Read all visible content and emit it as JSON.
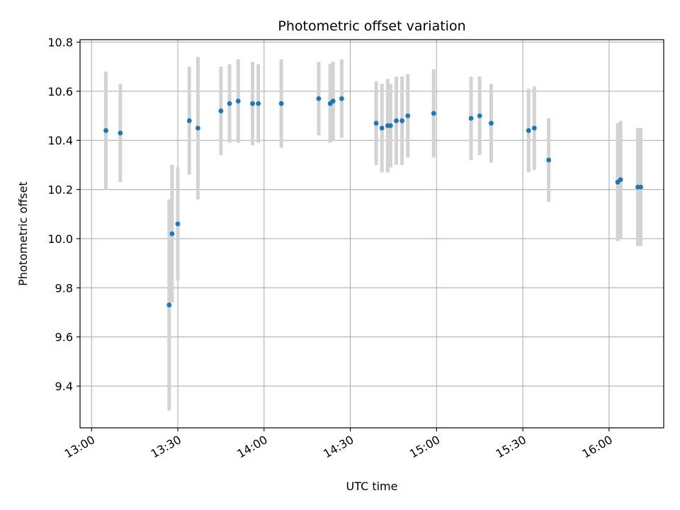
{
  "chart_data": {
    "type": "scatter",
    "title": "Photometric offset variation",
    "xlabel": "UTC time",
    "ylabel": "Photometric offset",
    "x_ticks": [
      "13:00",
      "13:30",
      "14:00",
      "14:30",
      "15:00",
      "15:30",
      "16:00"
    ],
    "y_ticks": [
      "9.4",
      "9.6",
      "9.8",
      "10.0",
      "10.2",
      "10.4",
      "10.6",
      "10.8"
    ],
    "xlim": [
      "12:56",
      "16:19"
    ],
    "ylim": [
      9.23,
      10.81
    ],
    "grid": true,
    "colors": {
      "point": "#1f77b4",
      "errorbar": "#d3d3d3",
      "grid": "#b0b0b0"
    },
    "points": [
      {
        "x": "13:05",
        "y": 10.44,
        "err": 0.24
      },
      {
        "x": "13:10",
        "y": 10.43,
        "err": 0.2
      },
      {
        "x": "13:27",
        "y": 9.73,
        "err": 0.43
      },
      {
        "x": "13:28",
        "y": 10.02,
        "err": 0.28
      },
      {
        "x": "13:30",
        "y": 10.06,
        "err": 0.23
      },
      {
        "x": "13:34",
        "y": 10.48,
        "err": 0.22
      },
      {
        "x": "13:37",
        "y": 10.45,
        "err": 0.29
      },
      {
        "x": "13:45",
        "y": 10.52,
        "err": 0.18
      },
      {
        "x": "13:48",
        "y": 10.55,
        "err": 0.16
      },
      {
        "x": "13:51",
        "y": 10.56,
        "err": 0.17
      },
      {
        "x": "13:56",
        "y": 10.55,
        "err": 0.17
      },
      {
        "x": "13:58",
        "y": 10.55,
        "err": 0.16
      },
      {
        "x": "14:06",
        "y": 10.55,
        "err": 0.18
      },
      {
        "x": "14:19",
        "y": 10.57,
        "err": 0.15
      },
      {
        "x": "14:23",
        "y": 10.55,
        "err": 0.16
      },
      {
        "x": "14:24",
        "y": 10.56,
        "err": 0.16
      },
      {
        "x": "14:27",
        "y": 10.57,
        "err": 0.16
      },
      {
        "x": "14:39",
        "y": 10.47,
        "err": 0.17
      },
      {
        "x": "14:41",
        "y": 10.45,
        "err": 0.18
      },
      {
        "x": "14:43",
        "y": 10.46,
        "err": 0.19
      },
      {
        "x": "14:44",
        "y": 10.46,
        "err": 0.17
      },
      {
        "x": "14:46",
        "y": 10.48,
        "err": 0.18
      },
      {
        "x": "14:48",
        "y": 10.48,
        "err": 0.18
      },
      {
        "x": "14:50",
        "y": 10.5,
        "err": 0.17
      },
      {
        "x": "14:59",
        "y": 10.51,
        "err": 0.18
      },
      {
        "x": "15:12",
        "y": 10.49,
        "err": 0.17
      },
      {
        "x": "15:15",
        "y": 10.5,
        "err": 0.16
      },
      {
        "x": "15:19",
        "y": 10.47,
        "err": 0.16
      },
      {
        "x": "15:32",
        "y": 10.44,
        "err": 0.17
      },
      {
        "x": "15:34",
        "y": 10.45,
        "err": 0.17
      },
      {
        "x": "15:39",
        "y": 10.32,
        "err": 0.17
      },
      {
        "x": "16:03",
        "y": 10.23,
        "err": 0.24
      },
      {
        "x": "16:04",
        "y": 10.24,
        "err": 0.24
      },
      {
        "x": "16:10",
        "y": 10.21,
        "err": 0.24
      },
      {
        "x": "16:11",
        "y": 10.21,
        "err": 0.24
      }
    ]
  }
}
